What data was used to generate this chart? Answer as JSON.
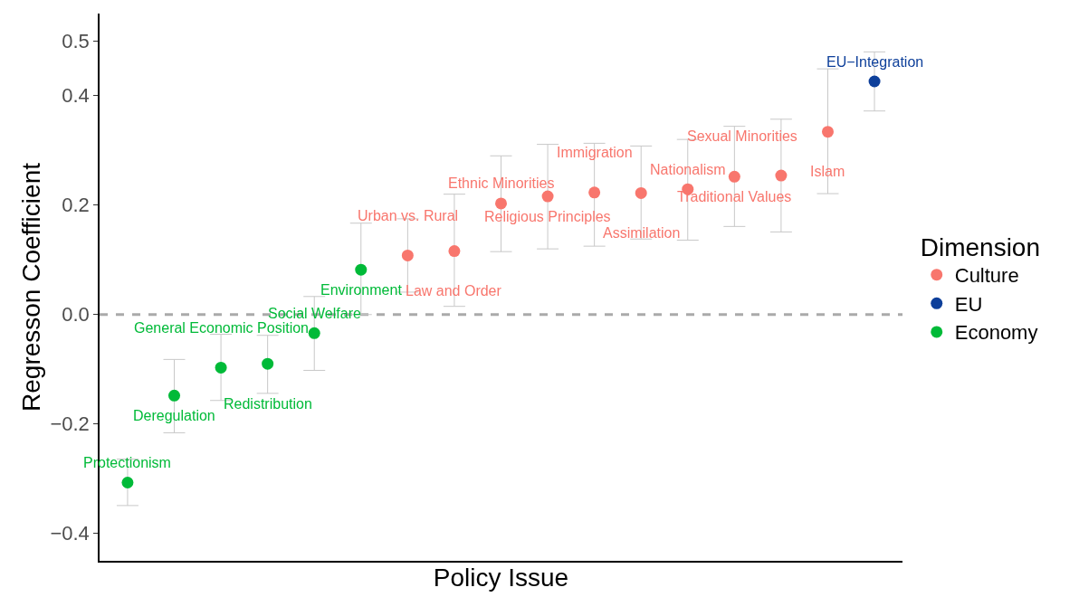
{
  "chart_data": {
    "type": "scatter",
    "xlabel": "Policy Issue",
    "ylabel": "Regresson Coefficient",
    "legend_title": "Dimension",
    "legend": "right",
    "grid": false,
    "marker": "circle",
    "tick_labels": "y",
    "categories": [
      null,
      null,
      null,
      null,
      null,
      null,
      null,
      null,
      null,
      null,
      null,
      null,
      null,
      null,
      null,
      null,
      null
    ],
    "annotations": [
      {
        "text": "Protectionism",
        "y": -0.307
      },
      {
        "text": "Deregulation",
        "y": -0.148
      },
      {
        "text": "General Economic Position",
        "y": -0.097
      },
      {
        "text": "Redistribution",
        "y": -0.09
      },
      {
        "text": "Social Welfare",
        "y": -0.034
      },
      {
        "text": "Environment",
        "y": 0.082
      },
      {
        "text": "Urban vs. Rural",
        "y": 0.108
      },
      {
        "text": "Law and Order",
        "y": 0.116
      },
      {
        "text": "Ethnic Minorities",
        "y": 0.203
      },
      {
        "text": "Religious Principles",
        "y": 0.216
      },
      {
        "text": "Immigration",
        "y": 0.223
      },
      {
        "text": "Assimilation",
        "y": 0.222
      },
      {
        "text": "Nationalism",
        "y": 0.229
      },
      {
        "text": "Traditional Values",
        "y": 0.252
      },
      {
        "text": "Sexual Minorities",
        "y": 0.254
      },
      {
        "text": "Islam",
        "y": 0.334
      },
      {
        "text": "EU−Integration",
        "y": 0.426
      }
    ],
    "ylim": [
      -0.45,
      0.55
    ],
    "yticks": [
      {
        "value": -0.4,
        "label": "−0.4"
      },
      {
        "value": -0.2,
        "label": "−0.2"
      },
      {
        "value": 0,
        "label": "0.0"
      },
      0.2,
      0.4,
      0.5
    ],
    "ref_lines": [
      {
        "axis": "y",
        "value": 0,
        "color": "#aaaaaa",
        "line_style": "dashed"
      }
    ],
    "series": [
      {
        "name": "Culture",
        "color": "#f8766d",
        "values": [
          null,
          null,
          null,
          null,
          null,
          null,
          0.108,
          0.116,
          0.203,
          0.216,
          0.223,
          0.222,
          0.229,
          0.252,
          0.254,
          0.334,
          null
        ],
        "errors": [
          null,
          null,
          null,
          null,
          null,
          null,
          [
            0.041,
            0.175
          ],
          [
            0.015,
            0.22
          ],
          [
            0.115,
            0.29
          ],
          [
            0.12,
            0.311
          ],
          [
            0.125,
            0.313
          ],
          [
            0.138,
            0.308
          ],
          [
            0.136,
            0.32
          ],
          [
            0.161,
            0.344
          ],
          [
            0.151,
            0.357
          ],
          [
            0.221,
            0.449
          ],
          null
        ]
      },
      {
        "name": "EU",
        "color": "#0d3f9a",
        "values": [
          null,
          null,
          null,
          null,
          null,
          null,
          null,
          null,
          null,
          null,
          null,
          null,
          null,
          null,
          null,
          null,
          0.426
        ],
        "errors": [
          null,
          null,
          null,
          null,
          null,
          null,
          null,
          null,
          null,
          null,
          null,
          null,
          null,
          null,
          null,
          null,
          [
            0.372,
            0.48
          ]
        ]
      },
      {
        "name": "Economy",
        "color": "#00ba38",
        "values": [
          -0.307,
          -0.148,
          -0.097,
          -0.09,
          -0.034,
          0.082,
          null,
          null,
          null,
          null,
          null,
          null,
          null,
          null,
          null,
          null,
          null
        ],
        "errors": [
          [
            -0.349,
            -0.264
          ],
          [
            -0.216,
            -0.082
          ],
          [
            -0.157,
            -0.036
          ],
          [
            -0.144,
            -0.038
          ],
          [
            -0.102,
            0.033
          ],
          [
            0,
            0.167
          ],
          null,
          null,
          null,
          null,
          null,
          null,
          null,
          null,
          null,
          null,
          null
        ]
      }
    ]
  }
}
